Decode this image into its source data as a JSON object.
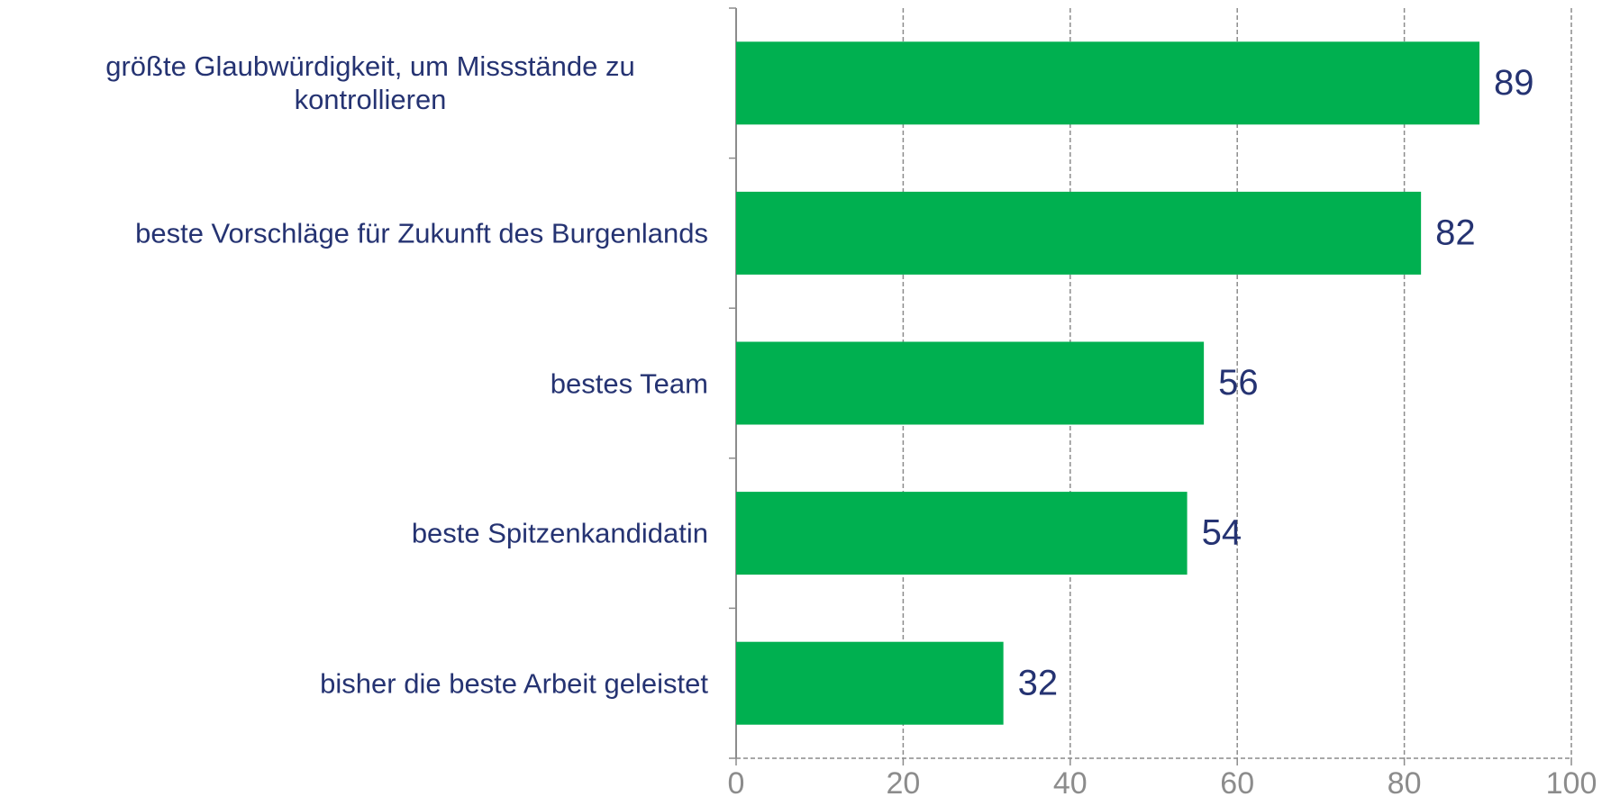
{
  "chart_data": {
    "type": "barh",
    "categories": [
      "größte Glaubwürdigkeit, um Missstände zu kontrollieren",
      "beste Vorschläge für Zukunft des Burgenlands",
      "bestes Team",
      "beste Spitzenkandidatin",
      "bisher die beste Arbeit geleistet"
    ],
    "values": [
      89,
      82,
      56,
      54,
      32
    ],
    "color": "#00b050",
    "xlim": [
      0,
      100
    ],
    "xticks": [
      0,
      20,
      40,
      60,
      80,
      100
    ],
    "grid": true
  }
}
